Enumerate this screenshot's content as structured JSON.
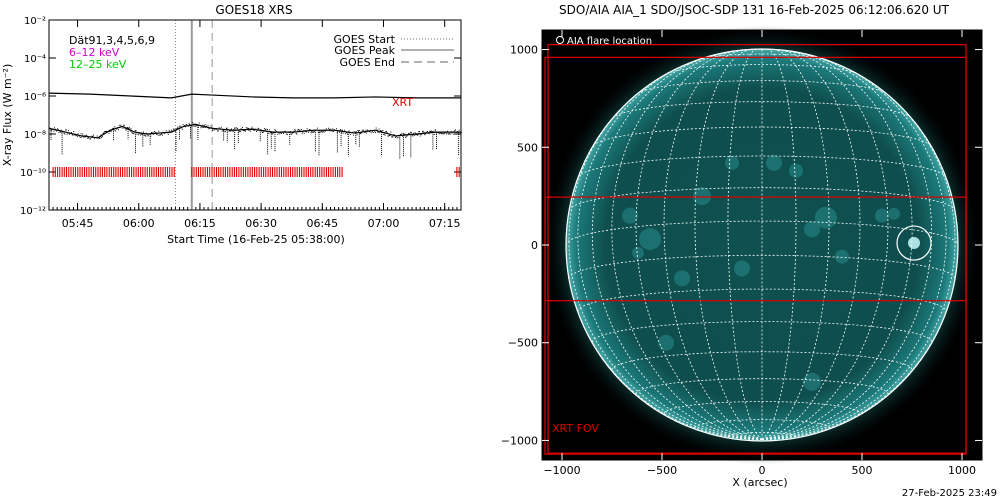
{
  "colors": {
    "xrt": "#e00000",
    "low_channel": "#cc00cc",
    "high_channel": "#00cc00",
    "disk": "#0e4a4a",
    "grid": "#ffffff",
    "background": "#000000"
  },
  "chart_data": [
    {
      "type": "line",
      "title": "GOES18 XRS",
      "xlabel": "Start Time (16-Feb-25 05:38:00)",
      "ylabel": "X-ray Flux (W m⁻²)",
      "y_scale": "log",
      "ylim": [
        1e-12,
        0.01
      ],
      "y_ticks": [
        {
          "value": -2,
          "label": "10⁻²"
        },
        {
          "value": -4,
          "label": "10⁻⁴"
        },
        {
          "value": -6,
          "label": "10⁻⁶"
        },
        {
          "value": -8,
          "label": "10⁻⁸"
        },
        {
          "value": -10,
          "label": "10⁻¹⁰"
        },
        {
          "value": -12,
          "label": "10⁻¹²"
        }
      ],
      "x_ticks": [
        {
          "minutes": 7,
          "label": "05:45"
        },
        {
          "minutes": 22,
          "label": "06:00"
        },
        {
          "minutes": 37,
          "label": "06:15"
        },
        {
          "minutes": 52,
          "label": "06:30"
        },
        {
          "minutes": 67,
          "label": "06:45"
        },
        {
          "minutes": 82,
          "label": "07:00"
        },
        {
          "minutes": 97,
          "label": "07:15"
        }
      ],
      "xlim_minutes": [
        0,
        101
      ],
      "legend_left": [
        {
          "text": "Dät91,3,4,5,6,9",
          "color": "#000000"
        },
        {
          "text": "6–12 keV",
          "color": "#cc00cc"
        },
        {
          "text": "12–25 keV",
          "color": "#00cc00"
        }
      ],
      "legend_right": [
        {
          "text": "GOES Start",
          "style": "dotted"
        },
        {
          "text": "GOES Peak",
          "style": "solid"
        },
        {
          "text": "GOES End",
          "style": "dashed"
        }
      ],
      "event_lines": {
        "start_minutes": 31,
        "peak_minutes": 35,
        "end_minutes": 40
      },
      "xrt_label": "XRT",
      "series": [
        {
          "name": "long channel",
          "x": [
            0,
            10,
            20,
            30,
            35,
            40,
            50,
            60,
            70,
            80,
            90,
            101
          ],
          "log_flux": [
            -5.85,
            -5.9,
            -6.0,
            -6.1,
            -5.9,
            -5.95,
            -6.05,
            -6.1,
            -6.1,
            -6.05,
            -6.1,
            -6.1
          ]
        },
        {
          "name": "short channel",
          "x": [
            0,
            4,
            8,
            12,
            15,
            18,
            21,
            24,
            27,
            30,
            33,
            36,
            40,
            45,
            50,
            55,
            60,
            65,
            70,
            75,
            80,
            85,
            90,
            95,
            101
          ],
          "log_flux": [
            -7.7,
            -7.9,
            -8.1,
            -8.2,
            -7.8,
            -7.6,
            -7.9,
            -8.0,
            -7.95,
            -7.9,
            -7.6,
            -7.5,
            -7.7,
            -7.8,
            -7.75,
            -7.9,
            -7.9,
            -7.8,
            -7.8,
            -7.95,
            -7.8,
            -8.1,
            -8.0,
            -7.9,
            -7.9
          ]
        }
      ],
      "xrt_coverage_minutes": [
        [
          1,
          31
        ],
        [
          35,
          72
        ],
        [
          100,
          101
        ]
      ]
    },
    {
      "type": "image",
      "title": "SDO/AIA AIA_1 SDO/JSOC-SDP 131 16-Feb-2025 06:12:06.620 UT",
      "xlabel": "X (arcsec)",
      "x_ticks": [
        -1000,
        -500,
        0,
        500,
        1000
      ],
      "y_ticks": [
        1000,
        500,
        0,
        -500,
        -1000
      ],
      "xlim": [
        -1100,
        1100
      ],
      "ylim": [
        -1100,
        1100
      ],
      "solar_radius_arcsec": 980,
      "legend": "AIA flare location",
      "flare_location": {
        "x": 760,
        "y": 10,
        "radius": 85
      },
      "xrt_fov_label": "XRT FOV",
      "xrt_fov_outer": {
        "x": [
          -1070,
          1020
        ],
        "y": [
          -1065,
          1025
        ]
      },
      "xrt_fov_inner": {
        "x": [
          -1085,
          1020
        ],
        "y": [
          -1070,
          960
        ]
      },
      "xrt_strip": {
        "y": [
          -285,
          245
        ]
      }
    }
  ],
  "footer": {
    "timestamp": "27-Feb-2025 23:49"
  }
}
